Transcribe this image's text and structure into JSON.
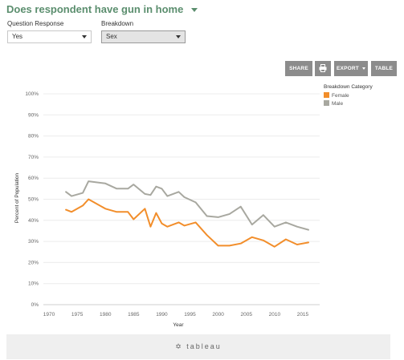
{
  "header": {
    "title": "Does respondent have gun in home"
  },
  "filters": {
    "question_label": "Question Response",
    "question_value": "Yes",
    "breakdown_label": "Breakdown",
    "breakdown_value": "Sex"
  },
  "toolbar": {
    "share_label": "SHARE",
    "print_icon": "printer-icon",
    "export_label": "EXPORT",
    "table_label": "TABLE"
  },
  "footer": {
    "brand": "tableau",
    "brand_icon": "tableau-plus-icon"
  },
  "chart_data": {
    "type": "line",
    "xlabel": "Year",
    "ylabel": "Percent of Population",
    "xlim": [
      1969,
      2018
    ],
    "ylim": [
      0,
      100
    ],
    "x_ticks": [
      "1970",
      "1975",
      "1980",
      "1985",
      "1990",
      "1995",
      "2000",
      "2005",
      "2010",
      "2015"
    ],
    "x_tick_values": [
      1970,
      1975,
      1980,
      1985,
      1990,
      1995,
      2000,
      2005,
      2010,
      2015
    ],
    "y_ticks": [
      "0%",
      "10%",
      "20%",
      "30%",
      "40%",
      "50%",
      "60%",
      "70%",
      "80%",
      "90%",
      "100%"
    ],
    "y_tick_values": [
      0,
      10,
      20,
      30,
      40,
      50,
      60,
      70,
      80,
      90,
      100
    ],
    "grid": true,
    "legend_title": "Breakdown Category",
    "legend_position": "top-right",
    "series": [
      {
        "name": "Female",
        "color": "#f28e2b",
        "x": [
          1973,
          1974,
          1976,
          1977,
          1980,
          1982,
          1984,
          1985,
          1987,
          1988,
          1989,
          1990,
          1991,
          1993,
          1994,
          1996,
          1998,
          2000,
          2002,
          2004,
          2006,
          2008,
          2010,
          2012,
          2014,
          2016
        ],
        "y": [
          45,
          44,
          47,
          50,
          45.5,
          44,
          44,
          40.5,
          45.5,
          37,
          43.5,
          38.5,
          37,
          39,
          37.5,
          39,
          33,
          28,
          28,
          29,
          32,
          30.5,
          27.5,
          31,
          28.5,
          29.5
        ]
      },
      {
        "name": "Male",
        "color": "#a8a8a0",
        "x": [
          1973,
          1974,
          1976,
          1977,
          1980,
          1982,
          1984,
          1985,
          1987,
          1988,
          1989,
          1990,
          1991,
          1993,
          1994,
          1996,
          1998,
          2000,
          2002,
          2004,
          2006,
          2008,
          2010,
          2012,
          2014,
          2016
        ],
        "y": [
          53.5,
          51.5,
          53,
          58.5,
          57.5,
          55,
          55,
          57,
          52.5,
          52,
          56,
          55,
          51.5,
          53.5,
          51,
          48.5,
          42,
          41.5,
          43,
          46.5,
          38,
          42.5,
          37,
          39,
          37,
          35.5
        ]
      }
    ]
  }
}
